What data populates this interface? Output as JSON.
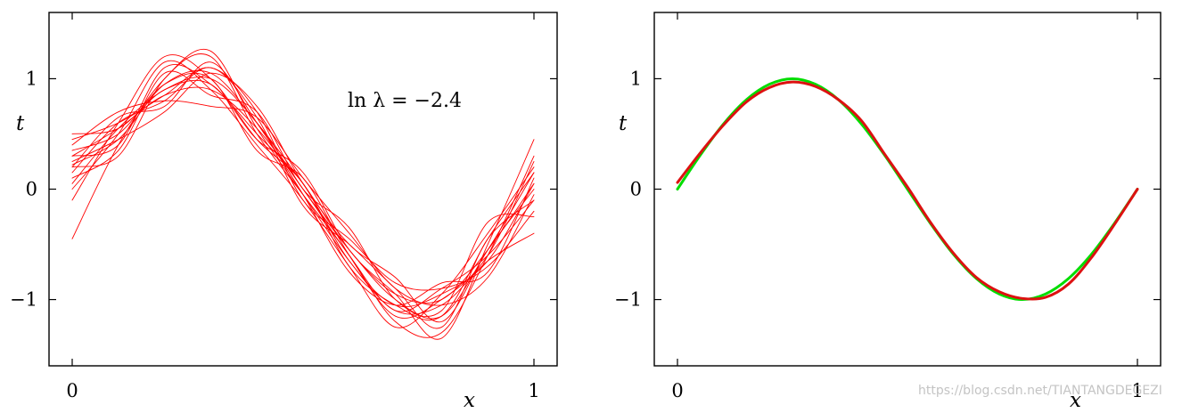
{
  "chart_data": [
    {
      "type": "line",
      "title": "",
      "xlabel": "x",
      "ylabel": "t",
      "xlim": [
        0,
        1
      ],
      "ylim": [
        -1.6,
        1.6
      ],
      "xticks": [
        0,
        1
      ],
      "xtick_labels": [
        "0",
        "1"
      ],
      "yticks": [
        -1,
        0,
        1
      ],
      "ytick_labels": [
        "−1",
        "0",
        "1"
      ],
      "grid": false,
      "legend": "none",
      "annotation": "ln λ = −2.4",
      "series_color": "#ff0000",
      "x": [
        0,
        0.1,
        0.2,
        0.3,
        0.4,
        0.5,
        0.6,
        0.7,
        0.8,
        0.9,
        1.0
      ],
      "series": [
        {
          "values": [
            0.22,
            0.45,
            0.95,
            1.05,
            0.6,
            0.05,
            -0.55,
            -0.95,
            -1.0,
            -0.55,
            0.05
          ]
        },
        {
          "values": [
            0.3,
            0.55,
            0.85,
            0.9,
            0.55,
            0.0,
            -0.6,
            -1.1,
            -0.9,
            -0.6,
            -0.1
          ]
        },
        {
          "values": [
            -0.1,
            0.6,
            1.2,
            1.0,
            0.45,
            0.05,
            -0.7,
            -1.05,
            -1.15,
            -0.45,
            0.15
          ]
        },
        {
          "values": [
            0.45,
            0.6,
            0.85,
            1.1,
            0.7,
            -0.1,
            -0.45,
            -0.85,
            -0.9,
            -0.7,
            -0.2
          ]
        },
        {
          "values": [
            0.2,
            0.3,
            1.0,
            1.2,
            0.5,
            -0.05,
            -0.6,
            -1.2,
            -1.3,
            -0.6,
            0.3
          ]
        },
        {
          "values": [
            0.4,
            0.7,
            0.8,
            0.75,
            0.65,
            0.1,
            -0.4,
            -0.9,
            -1.05,
            -0.8,
            -0.05
          ]
        },
        {
          "values": [
            0.0,
            0.5,
            1.15,
            0.9,
            0.4,
            -0.1,
            -0.7,
            -1.25,
            -0.95,
            -0.4,
            0.2
          ]
        },
        {
          "values": [
            0.25,
            0.45,
            0.7,
            1.05,
            0.75,
            0.05,
            -0.5,
            -0.8,
            -1.2,
            -0.55,
            0.0
          ]
        },
        {
          "values": [
            -0.45,
            0.4,
            1.0,
            1.25,
            0.55,
            -0.05,
            -0.65,
            -1.1,
            -1.05,
            -0.65,
            -0.4
          ]
        },
        {
          "values": [
            0.5,
            0.55,
            0.9,
            0.95,
            0.45,
            0.15,
            -0.55,
            -0.95,
            -1.35,
            -0.5,
            0.45
          ]
        },
        {
          "values": [
            0.2,
            0.65,
            0.75,
            1.15,
            0.6,
            -0.05,
            -0.75,
            -1.05,
            -0.85,
            -0.75,
            0.1
          ]
        },
        {
          "values": [
            0.1,
            0.35,
            1.05,
            0.85,
            0.7,
            0.0,
            -0.35,
            -1.0,
            -1.1,
            -0.3,
            -0.25
          ]
        },
        {
          "values": [
            0.35,
            0.5,
            0.95,
            1.0,
            0.35,
            0.1,
            -0.6,
            -1.15,
            -1.0,
            -0.6,
            0.25
          ]
        },
        {
          "values": [
            0.15,
            0.6,
            0.8,
            1.1,
            0.65,
            -0.15,
            -0.5,
            -0.9,
            -1.25,
            -0.45,
            -0.1
          ]
        },
        {
          "values": [
            0.3,
            0.4,
            1.1,
            0.95,
            0.5,
            0.05,
            -0.65,
            -1.05,
            -0.95,
            -0.65,
            0.05
          ]
        },
        {
          "values": [
            0.05,
            0.55,
            0.9,
            1.0,
            0.6,
            0.0,
            -0.55,
            -1.0,
            -1.15,
            -0.55,
            0.15
          ]
        }
      ]
    },
    {
      "type": "line",
      "title": "",
      "xlabel": "x",
      "ylabel": "t",
      "xlim": [
        0,
        1
      ],
      "ylim": [
        -1.6,
        1.6
      ],
      "xticks": [
        0,
        1
      ],
      "xtick_labels": [
        "0",
        "1"
      ],
      "yticks": [
        -1,
        0,
        1
      ],
      "ytick_labels": [
        "−1",
        "0",
        "1"
      ],
      "grid": false,
      "legend": "none",
      "x": [
        0,
        0.05,
        0.1,
        0.15,
        0.2,
        0.25,
        0.3,
        0.35,
        0.4,
        0.45,
        0.5,
        0.55,
        0.6,
        0.65,
        0.7,
        0.75,
        0.8,
        0.85,
        0.9,
        0.95,
        1.0
      ],
      "series": [
        {
          "color": "#00dd00",
          "values": [
            0.0,
            0.31,
            0.59,
            0.81,
            0.95,
            1.0,
            0.95,
            0.81,
            0.59,
            0.31,
            0.0,
            -0.31,
            -0.59,
            -0.81,
            -0.95,
            -1.0,
            -0.95,
            -0.81,
            -0.59,
            -0.31,
            0.0
          ]
        },
        {
          "color": "#dd1111",
          "values": [
            0.06,
            0.33,
            0.58,
            0.79,
            0.92,
            0.97,
            0.93,
            0.81,
            0.62,
            0.32,
            0.02,
            -0.3,
            -0.58,
            -0.8,
            -0.93,
            -0.99,
            -0.98,
            -0.86,
            -0.62,
            -0.32,
            0.0
          ]
        }
      ]
    }
  ],
  "watermark": "https://blog.csdn.net/TIANTANGDEGEZI"
}
